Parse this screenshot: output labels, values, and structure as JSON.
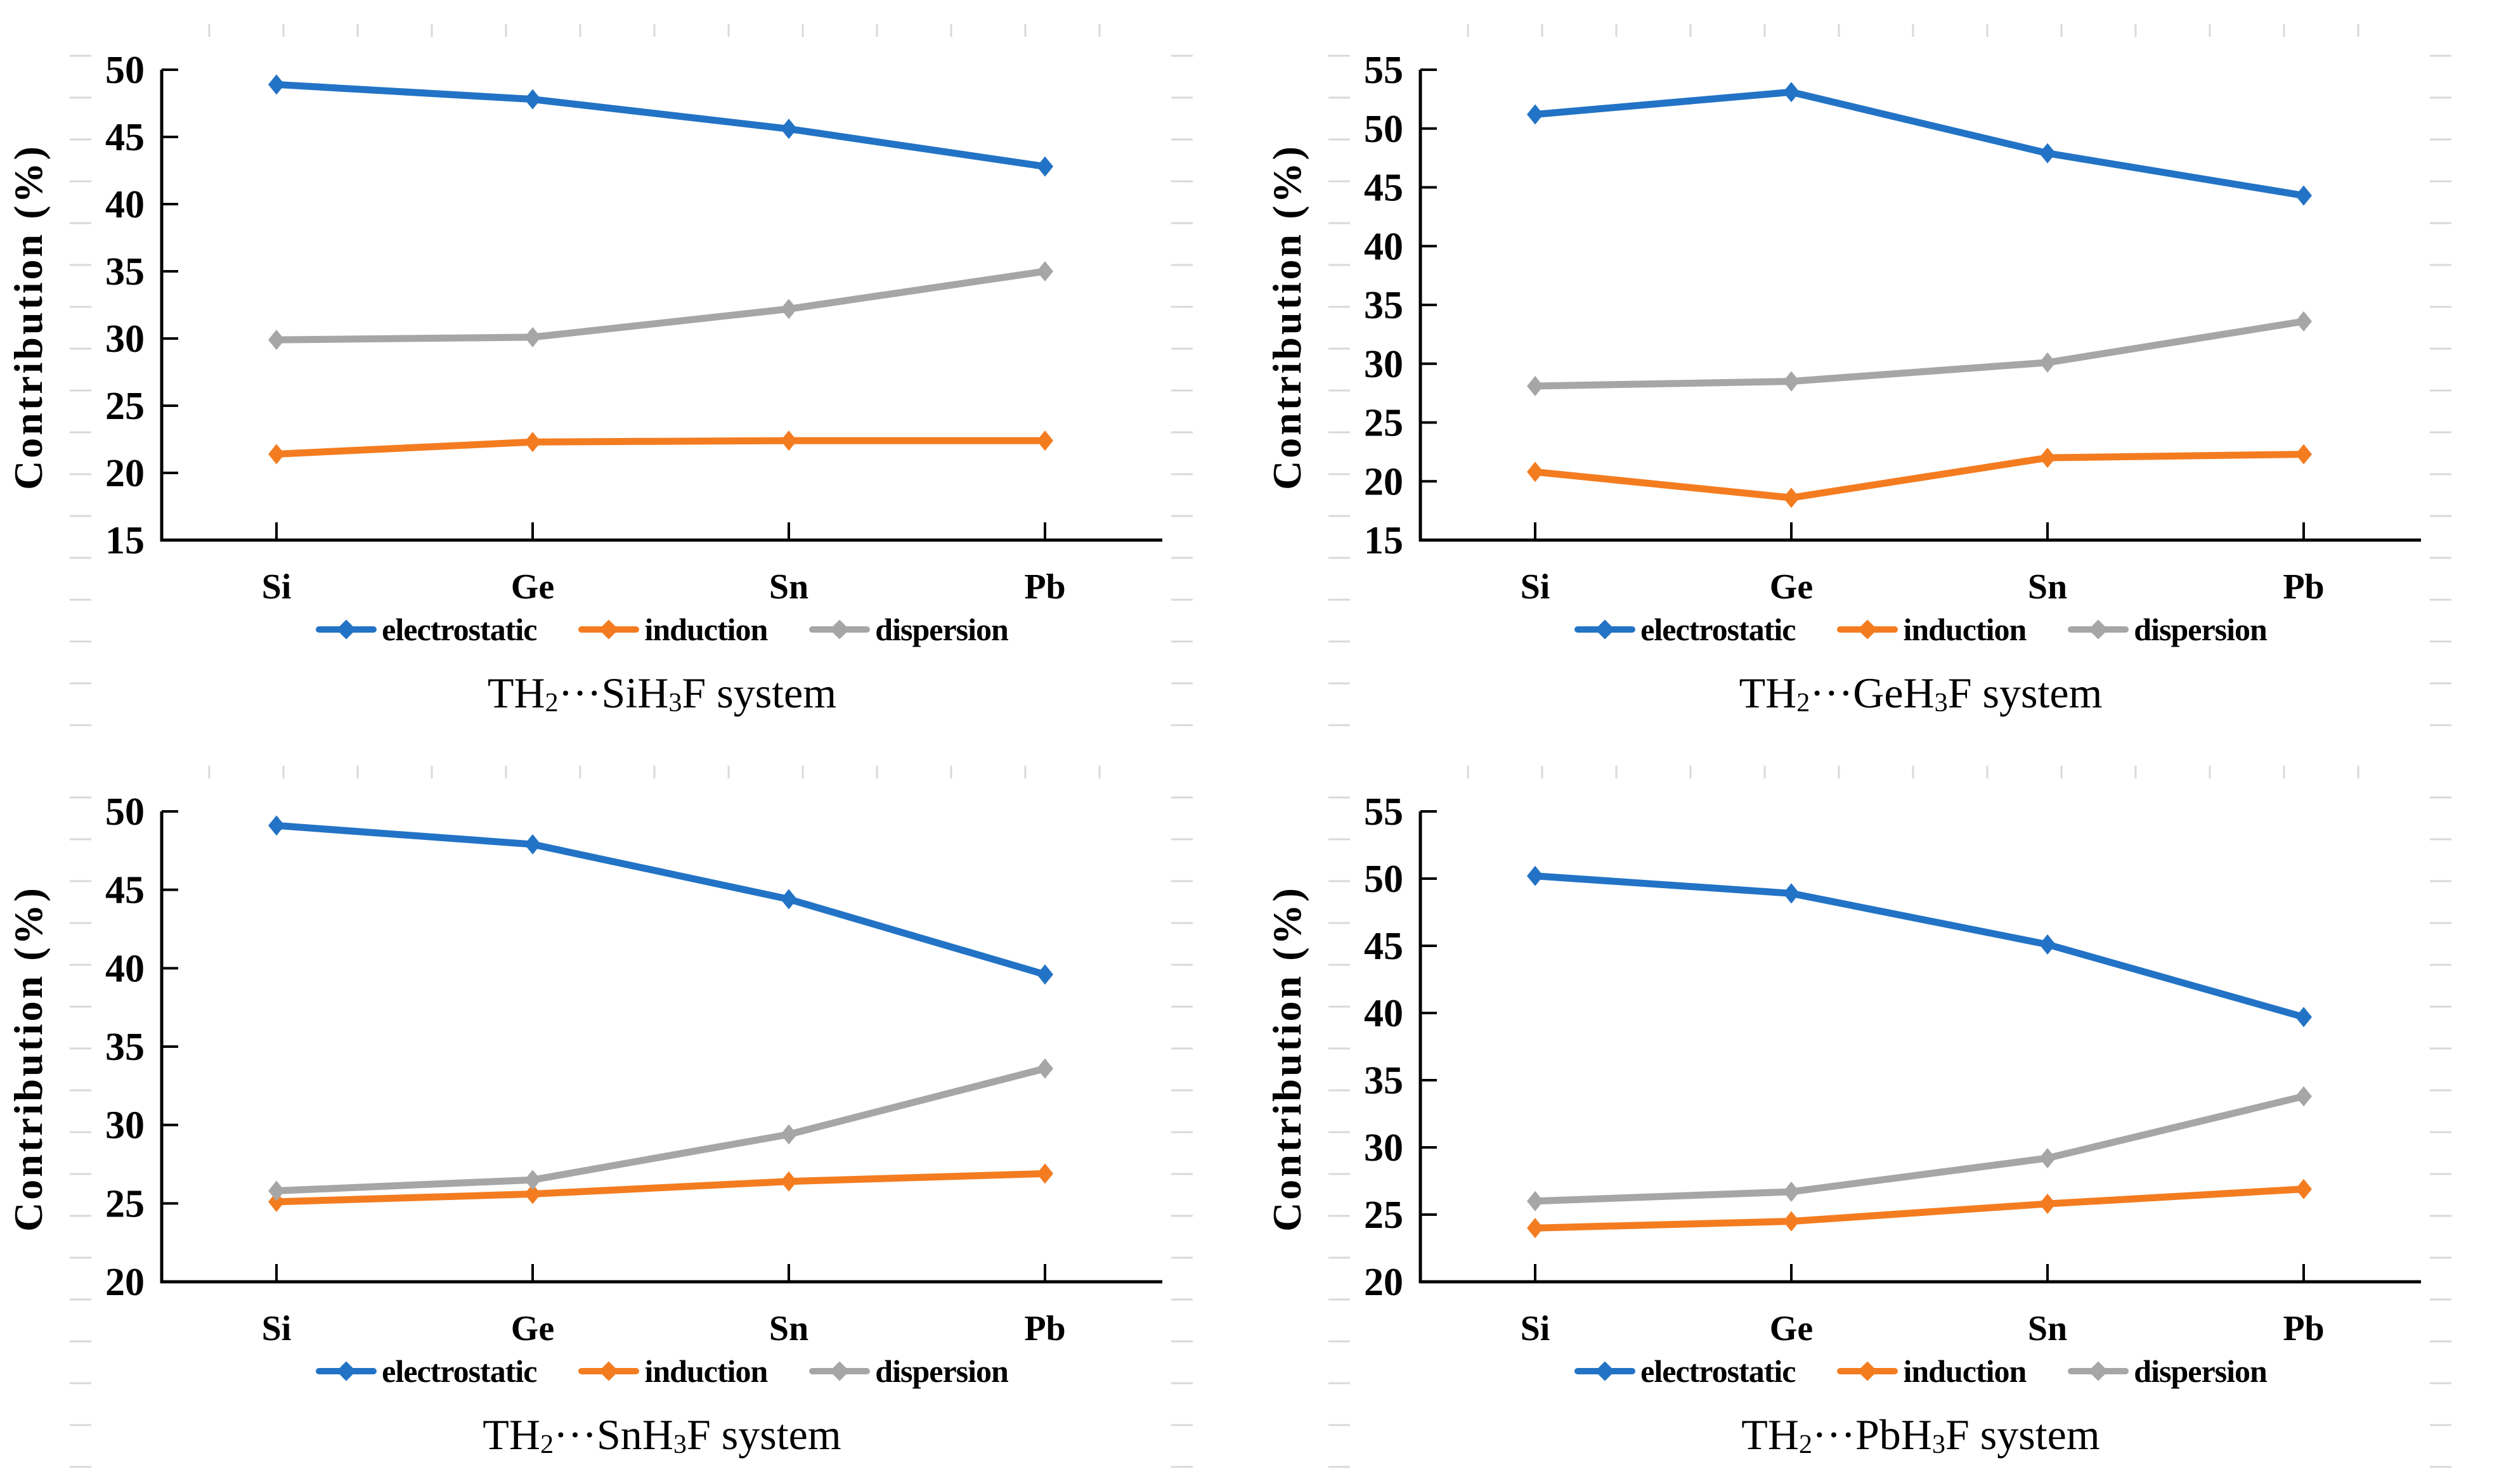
{
  "figure": {
    "background": "#ffffff",
    "description_visible_text_only": true
  },
  "colors": {
    "electrostatic": "#2273C5",
    "induction": "#F47C20",
    "dispersion": "#A6A6A6",
    "axis": "#000000",
    "minor_tick": "#D9D9D9",
    "text": "#000000"
  },
  "chart_data": [
    {
      "type": "line",
      "title": "TH2···SiH3F system",
      "caption_parts": [
        {
          "t": "TH"
        },
        {
          "t": "2",
          "sub": true
        },
        {
          "t": "···SiH"
        },
        {
          "t": "3",
          "sub": true
        },
        {
          "t": "F system"
        }
      ],
      "ylabel": "Contribution (%)",
      "categories": [
        "Si",
        "Ge",
        "Sn",
        "Pb"
      ],
      "ylim": [
        15,
        50
      ],
      "ytick_step": 5,
      "grid": false,
      "legend_position": "bottom",
      "series": [
        {
          "name": "electrostatic",
          "values": [
            48.9,
            47.8,
            45.6,
            42.8
          ]
        },
        {
          "name": "induction",
          "values": [
            21.4,
            22.3,
            22.4,
            22.4
          ]
        },
        {
          "name": "dispersion",
          "values": [
            29.9,
            30.1,
            32.2,
            35.0
          ]
        }
      ]
    },
    {
      "type": "line",
      "title": "TH2···GeH3F system",
      "caption_parts": [
        {
          "t": "TH"
        },
        {
          "t": "2",
          "sub": true
        },
        {
          "t": "···GeH"
        },
        {
          "t": "3",
          "sub": true
        },
        {
          "t": "F system"
        }
      ],
      "ylabel": "Contribution (%)",
      "categories": [
        "Si",
        "Ge",
        "Sn",
        "Pb"
      ],
      "ylim": [
        15,
        55
      ],
      "ytick_step": 5,
      "grid": false,
      "legend_position": "bottom",
      "series": [
        {
          "name": "electrostatic",
          "values": [
            51.2,
            53.1,
            47.9,
            44.3
          ]
        },
        {
          "name": "induction",
          "values": [
            20.8,
            18.6,
            22.0,
            22.3
          ]
        },
        {
          "name": "dispersion",
          "values": [
            28.1,
            28.5,
            30.1,
            33.6
          ]
        }
      ]
    },
    {
      "type": "line",
      "title": "TH2···SnH3F system",
      "caption_parts": [
        {
          "t": "TH"
        },
        {
          "t": "2",
          "sub": true
        },
        {
          "t": "···SnH"
        },
        {
          "t": "3",
          "sub": true
        },
        {
          "t": "F system"
        }
      ],
      "ylabel": "Contribution (%)",
      "categories": [
        "Si",
        "Ge",
        "Sn",
        "Pb"
      ],
      "ylim": [
        20,
        50
      ],
      "ytick_step": 5,
      "grid": false,
      "legend_position": "bottom",
      "series": [
        {
          "name": "electrostatic",
          "values": [
            49.1,
            47.9,
            44.4,
            39.6
          ]
        },
        {
          "name": "induction",
          "values": [
            25.1,
            25.6,
            26.4,
            26.9
          ]
        },
        {
          "name": "dispersion",
          "values": [
            25.8,
            26.5,
            29.4,
            33.6
          ]
        }
      ]
    },
    {
      "type": "line",
      "title": "TH2···PbH3F system",
      "caption_parts": [
        {
          "t": "TH"
        },
        {
          "t": "2",
          "sub": true
        },
        {
          "t": "···PbH"
        },
        {
          "t": "3",
          "sub": true
        },
        {
          "t": "F system"
        }
      ],
      "ylabel": "Contribution (%)",
      "categories": [
        "Si",
        "Ge",
        "Sn",
        "Pb"
      ],
      "ylim": [
        20,
        55
      ],
      "ytick_step": 5,
      "grid": false,
      "legend_position": "bottom",
      "series": [
        {
          "name": "electrostatic",
          "values": [
            50.2,
            48.9,
            45.1,
            39.7
          ]
        },
        {
          "name": "induction",
          "values": [
            24.0,
            24.5,
            25.8,
            26.9
          ]
        },
        {
          "name": "dispersion",
          "values": [
            26.0,
            26.7,
            29.2,
            33.8
          ]
        }
      ]
    }
  ]
}
